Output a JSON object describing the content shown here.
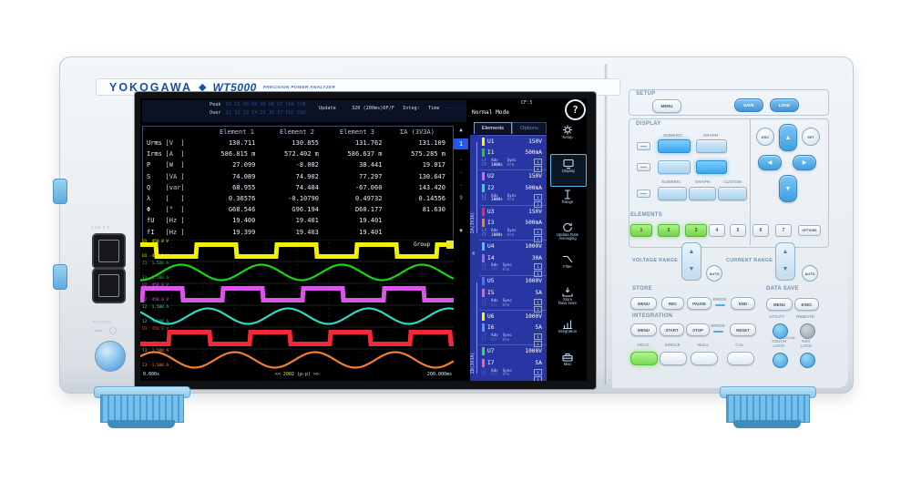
{
  "brand": {
    "name": "YOKOGAWA",
    "diamond": "◆",
    "model": "WT5000",
    "tagline": "PRECISION POWER ANALYZER"
  },
  "chassis": {
    "usb_label": "USB 2.0",
    "power_label": "POWER"
  },
  "colors": {
    "accent_blue": "#1b4fa5",
    "lit_key": "#38a8ee",
    "lit_green": "#72d449",
    "screen_panel_blue": "#2836a4"
  },
  "screen": {
    "status": {
      "peak_label": "Peak",
      "over_label": "Over",
      "peak_flags": "U1 U2 U3 U4 U5 U6 U7 ChA ChB",
      "over_flags": "I1 I2 I3 I4 I5 I6 I7 ChC ChD",
      "update_label": "Update",
      "update_value": "320 (200ms)DF/F",
      "integ_label": "Integ:",
      "time_label": "Time",
      "time_value": "----:--:--",
      "cf": "CF:3",
      "mode": "Normal Mode",
      "help_icon": "?"
    },
    "table": {
      "headers": [
        "Element 1",
        "Element 2",
        "Element 3",
        "ΣA (3V3A)"
      ],
      "rows": [
        {
          "name": "Urms",
          "unit": "[V  ]",
          "values": [
            "130.711",
            "130.855",
            "131.762",
            "131.109"
          ]
        },
        {
          "name": "Irms",
          "unit": "[A  ]",
          "values": [
            "586.815 m",
            "572.402 m",
            "586.637 m",
            "575.285 m"
          ]
        },
        {
          "name": "P",
          "unit": "[W  ]",
          "values": [
            "27.099",
            "-8.082",
            "38.441",
            "19.017"
          ]
        },
        {
          "name": "S",
          "unit": "[VA ]",
          "values": [
            "74.089",
            "74.902",
            "77.297",
            "130.647"
          ]
        },
        {
          "name": "Q",
          "unit": "[var]",
          "values": [
            "68.955",
            "74.484",
            "-67.060",
            "143.420"
          ]
        },
        {
          "name": "λ",
          "unit": "[   ]",
          "values": [
            "0.36576",
            "-0.10790",
            "0.49732",
            "0.14556"
          ]
        },
        {
          "name": "Φ",
          "unit": "[°  ]",
          "values": [
            "G68.546",
            "G96.194",
            "D60.177",
            "81.630"
          ]
        },
        {
          "name": "fU",
          "unit": "[Hz ]",
          "values": [
            "19.400",
            "19.401",
            "19.401",
            ""
          ]
        },
        {
          "name": "fI",
          "unit": "[Hz ]",
          "values": [
            "19.399",
            "19.403",
            "19.401",
            ""
          ]
        }
      ]
    },
    "pager": {
      "up": "▲",
      "current": "1",
      "dots": [
        "·",
        "·",
        "·"
      ],
      "last": "9",
      "down": "▼"
    },
    "elements_panel": {
      "tabs": [
        {
          "label": "Elements"
        },
        {
          "label": "Options"
        }
      ],
      "groups": [
        {
          "label": "ΣA(3V3A)"
        },
        {
          "label": "4"
        },
        {
          "label": "ΣB(3V3A)"
        }
      ],
      "sub_labels": {
        "lf": "LF",
        "ff": "FF",
        "adv": "Adv",
        "sync": "Sync",
        "hrm": "Hrm",
        "badges": [
          "1",
          "1"
        ]
      },
      "items": [
        {
          "u": "U1",
          "u_range": "150V",
          "u_color": "#f6f600",
          "i": "I1",
          "i_range": "500mA",
          "i_color": "#17d417",
          "adv": "100Hz",
          "adv_on": true
        },
        {
          "u": "U2",
          "u_range": "150V",
          "u_color": "#e060e8",
          "i": "I2",
          "i_range": "500mA",
          "i_color": "#30d8c8",
          "adv": "100Hz",
          "adv_on": true
        },
        {
          "u": "U3",
          "u_range": "150V",
          "u_color": "#f03040",
          "i": "I3",
          "i_range": "500mA",
          "i_color": "#f08030",
          "adv": "100Hz",
          "adv_on": true
        },
        {
          "u": "U4",
          "u_range": "1000V",
          "u_color": "#40c8f8",
          "i": "I4",
          "i_range": "30A",
          "i_color": "#9a6af0",
          "adv": "OFF",
          "adv_on": false
        },
        {
          "u": "U5",
          "u_range": "1000V",
          "u_color": "#4078f0",
          "i": "I5",
          "i_range": "5A",
          "i_color": "#f060a8",
          "adv": "OFF",
          "adv_on": false
        },
        {
          "u": "U6",
          "u_range": "1000V",
          "u_color": "#f6f600",
          "i": "I6",
          "i_range": "5A",
          "i_color": "#40a0f8",
          "adv": "OFF",
          "adv_on": false
        },
        {
          "u": "U7",
          "u_range": "1000V",
          "u_color": "#30e030",
          "i": "I7",
          "i_range": "5A",
          "i_color": "#f060a8",
          "adv": "OFF",
          "adv_on": false
        }
      ]
    },
    "menu_icons": [
      {
        "name": "setup-icon",
        "lines": [
          "Setup"
        ]
      },
      {
        "name": "display-icon",
        "lines": [
          "Display"
        ],
        "active": true
      },
      {
        "name": "range-icon",
        "lines": [
          "Range"
        ]
      },
      {
        "name": "update-rate-icon",
        "lines": [
          "Update Rate",
          "Averaging"
        ]
      },
      {
        "name": "filter-icon",
        "lines": [
          "Filter"
        ]
      },
      {
        "name": "store-icon",
        "lines": [
          "Store",
          "Data Save"
        ]
      },
      {
        "name": "integration-icon",
        "lines": [
          "Integration"
        ]
      },
      {
        "name": "misc-icon",
        "lines": [
          "Misc"
        ]
      }
    ],
    "waveform": {
      "group_label": "Group",
      "t_start": "0.000s",
      "t_end": "200.000ms",
      "zoom_text": "<< 2002 (p-p) >>",
      "cycles": 3.9,
      "traces": [
        {
          "id": "U1",
          "type": "square",
          "color": "#f2f200",
          "top": "U1  450.0 V",
          "bottom": "U1 -450.0 V",
          "phase": 0.305
        },
        {
          "id": "I1",
          "type": "sine",
          "color": "#17d417",
          "top": "I1  1.500 A",
          "bottom": "I1 -1.500 A",
          "phase": 0.743
        },
        {
          "id": "U2",
          "type": "square",
          "color": "#d957e8",
          "top": "U2  450.0 V",
          "bottom": "U2 -450.0 V",
          "phase": 0.972
        },
        {
          "id": "I2",
          "type": "sine",
          "color": "#2fd8c0",
          "top": "I2  1.500 A",
          "bottom": "I2 -1.500 A",
          "phase": 0.41
        },
        {
          "id": "U3",
          "type": "square",
          "color": "#f02838",
          "top": "U3  450.0 V",
          "bottom": "U3 -450.0 V",
          "phase": 0.638
        },
        {
          "id": "I3",
          "type": "sine",
          "color": "#f08030",
          "top": "I3  1.500 A",
          "bottom": "I3 -1.500 A",
          "phase": 0.076
        }
      ]
    }
  },
  "panel": {
    "setup": {
      "title": "SETUP",
      "menu": "MENU",
      "save": "SAVE",
      "load": "LOAD"
    },
    "display": {
      "title": "DISPLAY",
      "hdr1": [
        "NUMERIC",
        "GRAPH"
      ],
      "hdr2": [
        "NUMERIC",
        "GRAPH",
        "CUSTOM"
      ]
    },
    "nav": {
      "esc": "ESC",
      "set": "SET",
      "up": "▲",
      "down": "▼",
      "left": "◀",
      "right": "▶"
    },
    "elements": {
      "title": "ELEMENTS",
      "buttons": [
        "1",
        "2",
        "3",
        "4",
        "5",
        "6",
        "7"
      ],
      "active": [
        true,
        true,
        true,
        false,
        false,
        false,
        false
      ],
      "options": "OPTIONS"
    },
    "ranges": {
      "voltage": "VOLTAGE RANGE",
      "current": "CURRENT RANGE",
      "auto": "AUTO",
      "up": "▲",
      "down": "▼"
    },
    "store": {
      "title": "STORE",
      "menu": "MENU",
      "rec": "REC",
      "pause": "PAUSE",
      "error": "ERROR",
      "end": "END"
    },
    "datasave": {
      "title": "DATA SAVE",
      "menu": "MENU",
      "exec": "EXEC"
    },
    "integration": {
      "title": "INTEGRATION",
      "menu": "MENU",
      "start": "START",
      "stop": "STOP",
      "error": "ERROR",
      "reset": "RESET"
    },
    "utility": {
      "utility": "UTILITY",
      "remote": "REMOTE",
      "local": "LOCAL"
    },
    "bottom": {
      "hold": "HOLD",
      "single": "SINGLE",
      "null": "NULL",
      "cal": "CAL",
      "touch1": "TOUCH",
      "touch2": "LOCK",
      "key1": "KEY",
      "key2": "LOCK"
    }
  }
}
